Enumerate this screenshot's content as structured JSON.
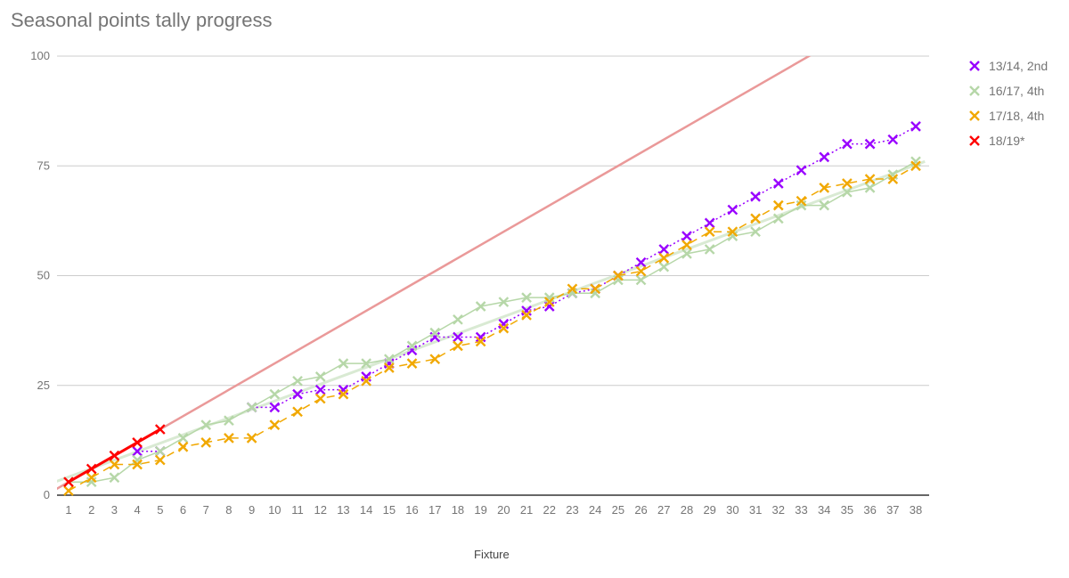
{
  "title": "Seasonal points tally progress",
  "chart_data": {
    "type": "line",
    "title": "Seasonal points tally progress",
    "xlabel": "Fixture",
    "ylabel": "",
    "ylim": [
      0,
      100
    ],
    "yticks": [
      0,
      25,
      50,
      75,
      100
    ],
    "x": [
      1,
      2,
      3,
      4,
      5,
      6,
      7,
      8,
      9,
      10,
      11,
      12,
      13,
      14,
      15,
      16,
      17,
      18,
      19,
      20,
      21,
      22,
      23,
      24,
      25,
      26,
      27,
      28,
      29,
      30,
      31,
      32,
      33,
      34,
      35,
      36,
      37,
      38
    ],
    "grid": true,
    "legend_position": "right",
    "series": [
      {
        "name": "13/14, 2nd",
        "color": "#9900ff",
        "style": "dotted",
        "values": [
          null,
          null,
          null,
          10,
          10,
          null,
          null,
          null,
          20,
          20,
          23,
          24,
          24,
          27,
          30,
          33,
          36,
          36,
          36,
          39,
          42,
          43,
          46,
          47,
          50,
          53,
          56,
          59,
          62,
          65,
          68,
          71,
          74,
          77,
          80,
          80,
          81,
          84
        ]
      },
      {
        "name": "16/17, 4th",
        "color": "#b6d7a8",
        "style": "solid",
        "values": [
          3,
          3,
          4,
          8,
          10,
          13,
          16,
          17,
          20,
          23,
          26,
          27,
          30,
          30,
          31,
          34,
          37,
          40,
          43,
          44,
          45,
          45,
          46,
          46,
          49,
          49,
          52,
          55,
          56,
          59,
          60,
          63,
          66,
          66,
          69,
          70,
          73,
          76
        ]
      },
      {
        "name": "17/18, 4th",
        "color": "#f1a800",
        "style": "dashed",
        "values": [
          1,
          4,
          7,
          7,
          8,
          11,
          12,
          13,
          13,
          16,
          19,
          22,
          23,
          26,
          29,
          30,
          31,
          34,
          35,
          38,
          41,
          44,
          47,
          47,
          50,
          51,
          54,
          57,
          60,
          60,
          63,
          66,
          67,
          70,
          71,
          72,
          72,
          75
        ]
      },
      {
        "name": "18/19*",
        "color": "#ff0000",
        "style": "solid-bold",
        "values": [
          3,
          6,
          9,
          12,
          15
        ]
      }
    ],
    "annotations": [
      {
        "type": "trendline",
        "color": "#ea9999",
        "description": "maximum pace (3 points per fixture)",
        "from": [
          0.33,
          1
        ],
        "to": [
          33.3,
          100
        ]
      },
      {
        "type": "trendline",
        "color": "#d9ead3",
        "description": "16/17 linear trend"
      }
    ]
  },
  "legend": [
    {
      "label": "13/14, 2nd",
      "color": "#9900ff"
    },
    {
      "label": "16/17, 4th",
      "color": "#b6d7a8"
    },
    {
      "label": "17/18, 4th",
      "color": "#f1a800"
    },
    {
      "label": "18/19*",
      "color": "#ff0000"
    }
  ],
  "axis": {
    "xlabel": "Fixture"
  }
}
